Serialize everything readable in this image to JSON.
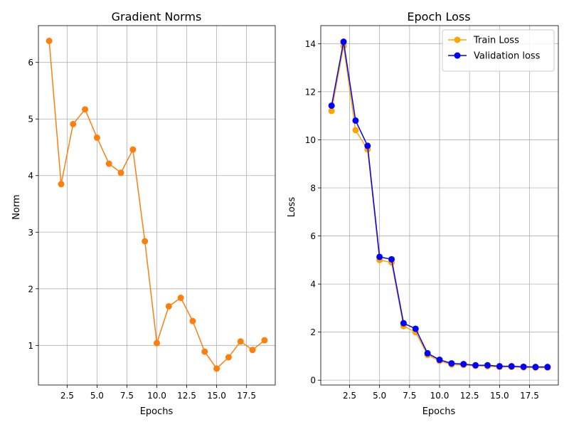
{
  "chart_data": [
    {
      "type": "line",
      "title": "Gradient Norms",
      "xlabel": "Epochs",
      "ylabel": "Norm",
      "xlim": [
        0.1,
        19.9
      ],
      "ylim": [
        0.3,
        6.65
      ],
      "xticks": [
        2.5,
        5.0,
        7.5,
        10.0,
        12.5,
        15.0,
        17.5
      ],
      "xtick_labels": [
        "2.5",
        "5.0",
        "7.5",
        "10.0",
        "12.5",
        "15.0",
        "17.5"
      ],
      "yticks": [
        1,
        2,
        3,
        4,
        5,
        6
      ],
      "ytick_labels": [
        "1",
        "2",
        "3",
        "4",
        "5",
        "6"
      ],
      "grid": true,
      "legend": null,
      "x": [
        1,
        2,
        3,
        4,
        5,
        6,
        7,
        8,
        9,
        10,
        11,
        12,
        13,
        14,
        15,
        16,
        17,
        18,
        19
      ],
      "series": [
        {
          "color": "#ff7f0e",
          "marker": "o",
          "values": [
            6.38,
            3.85,
            4.91,
            5.17,
            4.67,
            4.21,
            4.05,
            4.46,
            2.84,
            1.04,
            1.69,
            1.84,
            1.43,
            0.89,
            0.59,
            0.79,
            1.07,
            0.92,
            1.09
          ]
        }
      ]
    },
    {
      "type": "line",
      "title": "Epoch Loss",
      "xlabel": "Epochs",
      "ylabel": "Loss",
      "xlim": [
        0.1,
        19.9
      ],
      "ylim": [
        -0.2,
        14.75
      ],
      "xticks": [
        2.5,
        5.0,
        7.5,
        10.0,
        12.5,
        15.0,
        17.5
      ],
      "xtick_labels": [
        "2.5",
        "5.0",
        "7.5",
        "10.0",
        "12.5",
        "15.0",
        "17.5"
      ],
      "yticks": [
        0,
        2,
        4,
        6,
        8,
        10,
        12,
        14
      ],
      "ytick_labels": [
        "0",
        "2",
        "4",
        "6",
        "8",
        "10",
        "12",
        "14"
      ],
      "grid": true,
      "legend": "top-right",
      "x": [
        1,
        2,
        3,
        4,
        5,
        6,
        7,
        8,
        9,
        10,
        11,
        12,
        13,
        14,
        15,
        16,
        17,
        18,
        19
      ],
      "series": [
        {
          "name": "Train Loss",
          "color": "#ffa500",
          "marker": "o",
          "values": [
            11.2,
            13.9,
            10.4,
            9.6,
            5.0,
            4.9,
            2.25,
            2.0,
            1.05,
            0.8,
            0.65,
            0.63,
            0.6,
            0.58,
            0.55,
            0.55,
            0.53,
            0.52,
            0.52
          ]
        },
        {
          "name": "Validation loss",
          "color": "#0000ff",
          "marker": "o",
          "values": [
            11.42,
            14.08,
            10.8,
            9.75,
            5.13,
            5.03,
            2.37,
            2.14,
            1.12,
            0.85,
            0.7,
            0.67,
            0.62,
            0.62,
            0.58,
            0.58,
            0.56,
            0.55,
            0.55
          ]
        }
      ]
    }
  ]
}
